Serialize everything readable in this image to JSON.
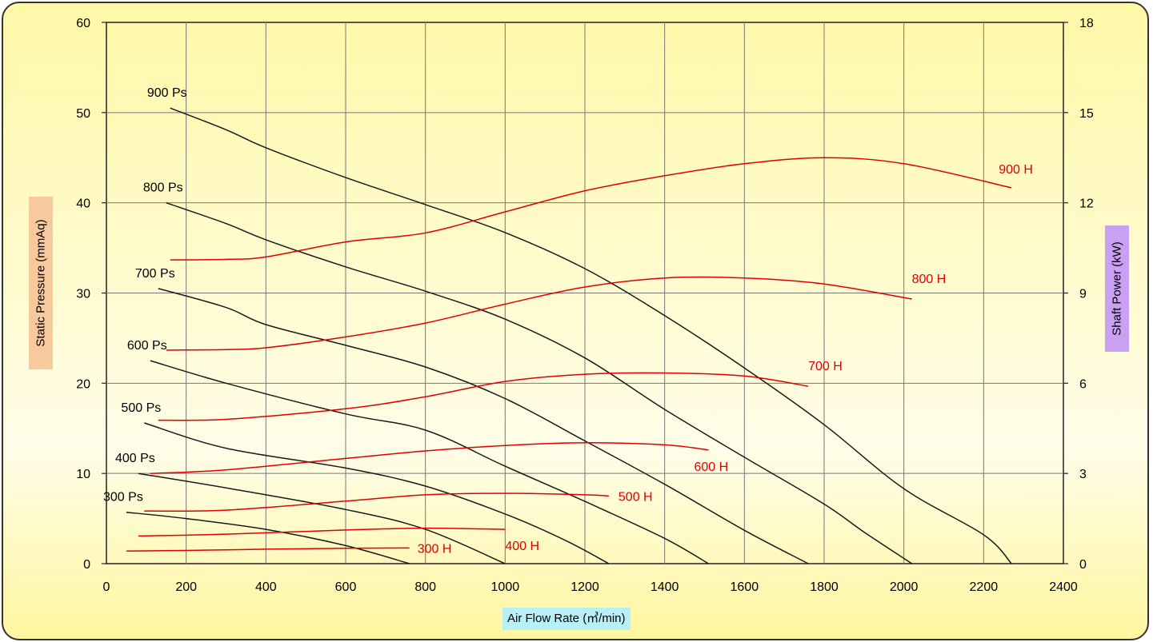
{
  "chart_data": {
    "type": "line",
    "xlabel": "Air Flow Rate (㎥/min)",
    "ylabel": "Static Pressure (mmAq)",
    "y2label": "Shaft Power (kW)",
    "xlim": [
      0,
      2400
    ],
    "ylim": [
      0,
      60
    ],
    "y2lim": [
      0,
      18
    ],
    "x_ticks": [
      0,
      200,
      400,
      600,
      800,
      1000,
      1200,
      1400,
      1600,
      1800,
      2000,
      2200,
      2400
    ],
    "y_ticks": [
      0,
      10,
      20,
      30,
      40,
      50,
      60
    ],
    "y2_ticks": [
      0,
      3,
      6,
      9,
      12,
      15,
      18
    ],
    "grid": true,
    "pressure_series": [
      {
        "name": "300 Ps",
        "points": [
          [
            50,
            5.7
          ],
          [
            200,
            5.0
          ],
          [
            400,
            3.8
          ],
          [
            600,
            2.0
          ],
          [
            760,
            0
          ]
        ]
      },
      {
        "name": "400 Ps",
        "points": [
          [
            80,
            10.0
          ],
          [
            300,
            8.4
          ],
          [
            600,
            6.0
          ],
          [
            800,
            3.8
          ],
          [
            1000,
            0
          ]
        ]
      },
      {
        "name": "500 Ps",
        "points": [
          [
            95,
            15.6
          ],
          [
            300,
            12.8
          ],
          [
            600,
            10.6
          ],
          [
            800,
            8.6
          ],
          [
            1000,
            5.5
          ],
          [
            1150,
            2.6
          ],
          [
            1260,
            0
          ]
        ]
      },
      {
        "name": "600 Ps",
        "points": [
          [
            110,
            22.5
          ],
          [
            300,
            20.0
          ],
          [
            600,
            16.6
          ],
          [
            800,
            14.8
          ],
          [
            1000,
            10.8
          ],
          [
            1200,
            6.9
          ],
          [
            1400,
            2.8
          ],
          [
            1510,
            0
          ]
        ]
      },
      {
        "name": "700 Ps",
        "points": [
          [
            130,
            30.5
          ],
          [
            300,
            28.4
          ],
          [
            400,
            26.5
          ],
          [
            600,
            24.2
          ],
          [
            800,
            21.8
          ],
          [
            1000,
            18.3
          ],
          [
            1200,
            13.6
          ],
          [
            1400,
            8.8
          ],
          [
            1600,
            3.7
          ],
          [
            1760,
            0
          ]
        ]
      },
      {
        "name": "800 Ps",
        "points": [
          [
            150,
            40.0
          ],
          [
            300,
            37.7
          ],
          [
            400,
            35.9
          ],
          [
            600,
            32.9
          ],
          [
            800,
            30.2
          ],
          [
            1000,
            27.1
          ],
          [
            1200,
            22.8
          ],
          [
            1400,
            17.1
          ],
          [
            1600,
            11.8
          ],
          [
            1800,
            6.6
          ],
          [
            1900,
            3.5
          ],
          [
            2020,
            0
          ]
        ]
      },
      {
        "name": "900 Ps",
        "points": [
          [
            160,
            50.5
          ],
          [
            300,
            48.1
          ],
          [
            400,
            46.1
          ],
          [
            600,
            42.8
          ],
          [
            800,
            39.8
          ],
          [
            1000,
            36.7
          ],
          [
            1200,
            32.7
          ],
          [
            1400,
            27.5
          ],
          [
            1600,
            21.7
          ],
          [
            1800,
            15.4
          ],
          [
            2000,
            8.3
          ],
          [
            2200,
            3.2
          ],
          [
            2270,
            0
          ]
        ]
      }
    ],
    "power_series": [
      {
        "name": "300 H",
        "points": [
          [
            50,
            0.42
          ],
          [
            200,
            0.44
          ],
          [
            400,
            0.48
          ],
          [
            600,
            0.51
          ],
          [
            760,
            0.52
          ]
        ]
      },
      {
        "name": "400 H",
        "points": [
          [
            80,
            0.92
          ],
          [
            300,
            0.98
          ],
          [
            600,
            1.12
          ],
          [
            800,
            1.18
          ],
          [
            1000,
            1.14
          ]
        ]
      },
      {
        "name": "500 H",
        "points": [
          [
            95,
            1.75
          ],
          [
            300,
            1.78
          ],
          [
            600,
            2.08
          ],
          [
            800,
            2.29
          ],
          [
            1000,
            2.34
          ],
          [
            1200,
            2.29
          ],
          [
            1260,
            2.25
          ]
        ]
      },
      {
        "name": "600 H",
        "points": [
          [
            110,
            3.0
          ],
          [
            300,
            3.12
          ],
          [
            600,
            3.5
          ],
          [
            800,
            3.75
          ],
          [
            1000,
            3.93
          ],
          [
            1200,
            4.02
          ],
          [
            1400,
            3.95
          ],
          [
            1510,
            3.78
          ]
        ]
      },
      {
        "name": "700 H",
        "points": [
          [
            130,
            4.77
          ],
          [
            300,
            4.8
          ],
          [
            600,
            5.15
          ],
          [
            800,
            5.55
          ],
          [
            1000,
            6.06
          ],
          [
            1200,
            6.3
          ],
          [
            1400,
            6.34
          ],
          [
            1600,
            6.24
          ],
          [
            1760,
            5.9
          ]
        ]
      },
      {
        "name": "800 H",
        "points": [
          [
            150,
            7.1
          ],
          [
            300,
            7.12
          ],
          [
            400,
            7.18
          ],
          [
            600,
            7.54
          ],
          [
            800,
            8.0
          ],
          [
            1000,
            8.63
          ],
          [
            1200,
            9.2
          ],
          [
            1400,
            9.5
          ],
          [
            1600,
            9.5
          ],
          [
            1800,
            9.3
          ],
          [
            2020,
            8.8
          ]
        ]
      },
      {
        "name": "900 H",
        "points": [
          [
            160,
            10.1
          ],
          [
            300,
            10.12
          ],
          [
            400,
            10.2
          ],
          [
            600,
            10.7
          ],
          [
            800,
            11.0
          ],
          [
            1000,
            11.7
          ],
          [
            1200,
            12.4
          ],
          [
            1400,
            12.9
          ],
          [
            1600,
            13.3
          ],
          [
            1800,
            13.5
          ],
          [
            2000,
            13.3
          ],
          [
            2270,
            12.5
          ]
        ]
      }
    ]
  }
}
